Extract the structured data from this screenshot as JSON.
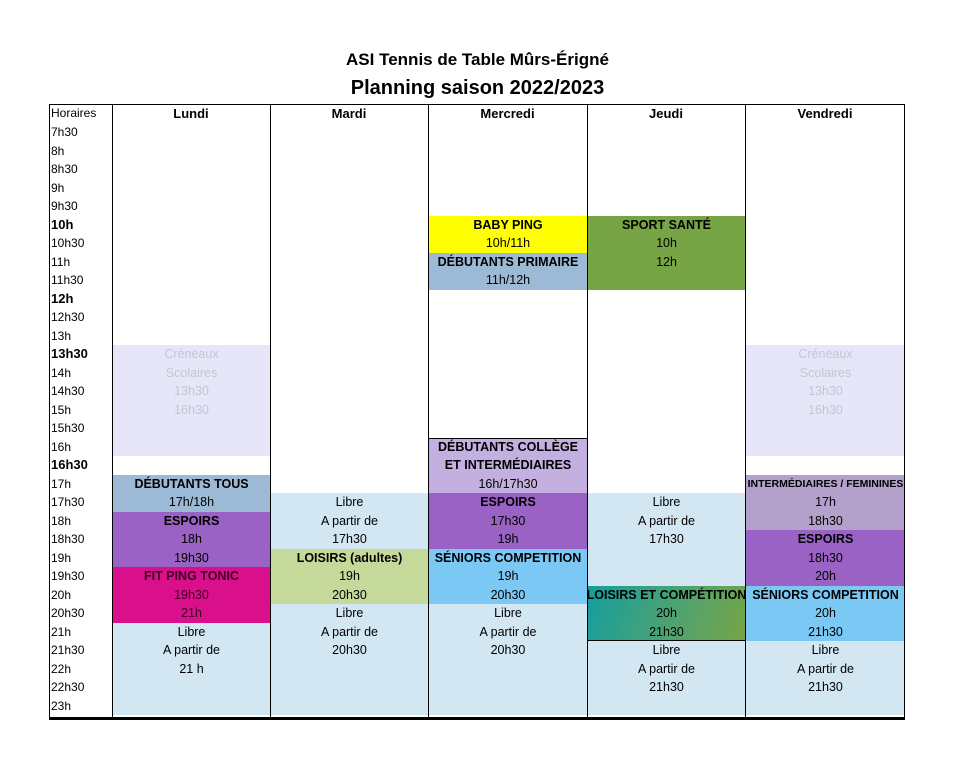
{
  "header": {
    "club": "ASI Tennis de Table Mûrs-Érigné",
    "season": "Planning saison 2022/2023"
  },
  "columns": [
    "Horaires",
    "Lundi",
    "Mardi",
    "Mercredi",
    "Jeudi",
    "Vendredi"
  ],
  "times": [
    {
      "label": "7h30",
      "bold": false
    },
    {
      "label": "8h",
      "bold": false
    },
    {
      "label": "8h30",
      "bold": false
    },
    {
      "label": "9h",
      "bold": false
    },
    {
      "label": "9h30",
      "bold": false
    },
    {
      "label": "10h",
      "bold": true
    },
    {
      "label": "10h30",
      "bold": false
    },
    {
      "label": "11h",
      "bold": false
    },
    {
      "label": "11h30",
      "bold": false
    },
    {
      "label": "12h",
      "bold": true
    },
    {
      "label": "12h30",
      "bold": false
    },
    {
      "label": "13h",
      "bold": false
    },
    {
      "label": "13h30",
      "bold": true
    },
    {
      "label": "14h",
      "bold": false
    },
    {
      "label": "14h30",
      "bold": false
    },
    {
      "label": "15h",
      "bold": false
    },
    {
      "label": "15h30",
      "bold": false
    },
    {
      "label": "16h",
      "bold": false
    },
    {
      "label": "16h30",
      "bold": true
    },
    {
      "label": "17h",
      "bold": false
    },
    {
      "label": "17h30",
      "bold": false
    },
    {
      "label": "18h",
      "bold": false
    },
    {
      "label": "18h30",
      "bold": false
    },
    {
      "label": "19h",
      "bold": false
    },
    {
      "label": "19h30",
      "bold": false
    },
    {
      "label": "20h",
      "bold": false
    },
    {
      "label": "20h30",
      "bold": false
    },
    {
      "label": "21h",
      "bold": false
    },
    {
      "label": "21h30",
      "bold": false
    },
    {
      "label": "22h",
      "bold": false
    },
    {
      "label": "22h30",
      "bold": false
    },
    {
      "label": "23h",
      "bold": false
    }
  ],
  "colors": {
    "scolaire": "#e6e6f8",
    "scolaire_text": "#c4c4d6",
    "libre": "#d3e7f3",
    "debutants": "#9cbad6",
    "espoirs": "#9a62c4",
    "fit": "#d90f8c",
    "loisirs_adultes": "#c5d99a",
    "baby": "#ffff00",
    "sport_sante": "#77a545",
    "college": "#c3afe0",
    "seniors": "#7cc8f4",
    "inter_fem": "#b3a0cb"
  },
  "activities": [
    {
      "day": 1,
      "start": 12,
      "slots": 6,
      "color_key": "scolaire",
      "muted": true,
      "lines": [
        "Créneaux",
        "Scolaires",
        "13h30",
        "16h30"
      ],
      "bold": [
        false,
        false,
        false,
        false
      ]
    },
    {
      "day": 1,
      "start": 19,
      "slots": 2,
      "color_key": "debutants",
      "lines": [
        "DÉBUTANTS TOUS",
        "17h/18h"
      ],
      "bold": [
        true,
        false
      ]
    },
    {
      "day": 1,
      "start": 21,
      "slots": 3,
      "color_key": "espoirs",
      "lines": [
        "ESPOIRS",
        "18h",
        "19h30"
      ],
      "bold": [
        true,
        false,
        false
      ]
    },
    {
      "day": 1,
      "start": 24,
      "slots": 3,
      "color_key": "fit",
      "lines": [
        "FIT PING TONIC",
        "19h30",
        "21h"
      ],
      "bold": [
        true,
        false,
        false
      ]
    },
    {
      "day": 1,
      "start": 27,
      "slots": 5,
      "color_key": "libre",
      "lines": [
        "Libre",
        "A partir de",
        "21 h"
      ],
      "bold": [
        false,
        false,
        false
      ]
    },
    {
      "day": 2,
      "start": 20,
      "slots": 3,
      "color_key": "libre",
      "lines": [
        "Libre",
        "A partir de",
        "17h30"
      ],
      "bold": [
        false,
        false,
        false
      ]
    },
    {
      "day": 2,
      "start": 23,
      "slots": 3,
      "color_key": "loisirs_adultes",
      "lines": [
        "LOISIRS (adultes)",
        "19h",
        "20h30"
      ],
      "bold": [
        true,
        false,
        false
      ]
    },
    {
      "day": 2,
      "start": 26,
      "slots": 6,
      "color_key": "libre",
      "lines": [
        "Libre",
        "A partir de",
        "20h30"
      ],
      "bold": [
        false,
        false,
        false
      ]
    },
    {
      "day": 3,
      "start": 5,
      "slots": 2,
      "color_key": "baby",
      "lines": [
        "BABY PING",
        "10h/11h"
      ],
      "bold": [
        true,
        false
      ]
    },
    {
      "day": 3,
      "start": 7,
      "slots": 2,
      "color_key": "debutants",
      "lines": [
        "DÉBUTANTS PRIMAIRE",
        "11h/12h"
      ],
      "bold": [
        true,
        false
      ]
    },
    {
      "day": 3,
      "start": 17,
      "slots": 3,
      "color_key": "college",
      "lines": [
        "DÉBUTANTS COLLÈGE",
        "ET INTERMÉDIAIRES",
        "16h/17h30"
      ],
      "bold": [
        true,
        true,
        false
      ]
    },
    {
      "day": 3,
      "start": 20,
      "slots": 3,
      "color_key": "espoirs",
      "lines": [
        "ESPOIRS",
        "17h30",
        "19h"
      ],
      "bold": [
        true,
        false,
        false
      ]
    },
    {
      "day": 3,
      "start": 23,
      "slots": 3,
      "color_key": "seniors",
      "lines": [
        "SÉNIORS COMPETITION",
        "19h",
        "20h30"
      ],
      "bold": [
        true,
        false,
        false
      ]
    },
    {
      "day": 3,
      "start": 26,
      "slots": 6,
      "color_key": "libre",
      "lines": [
        "Libre",
        "A partir de",
        "20h30"
      ],
      "bold": [
        false,
        false,
        false
      ]
    },
    {
      "day": 4,
      "start": 5,
      "slots": 4,
      "color_key": "sport_sante",
      "lines": [
        "SPORT SANTÉ",
        "10h",
        "12h"
      ],
      "bold": [
        true,
        false,
        false
      ]
    },
    {
      "day": 4,
      "start": 20,
      "slots": 5,
      "color_key": "libre",
      "lines": [
        "Libre",
        "A partir de",
        "17h30"
      ],
      "bold": [
        false,
        false,
        false
      ]
    },
    {
      "day": 4,
      "start": 25,
      "slots": 3,
      "color_key": "sport_sante",
      "gradient": true,
      "lines": [
        "LOISIRS ET COMPÉTITION",
        "20h",
        "21h30"
      ],
      "bold": [
        true,
        false,
        false
      ]
    },
    {
      "day": 4,
      "start": 28,
      "slots": 4,
      "color_key": "libre",
      "lines": [
        "Libre",
        "A partir de",
        "21h30"
      ],
      "bold": [
        false,
        false,
        false
      ]
    },
    {
      "day": 5,
      "start": 12,
      "slots": 6,
      "color_key": "scolaire",
      "muted": true,
      "lines": [
        "Créneaux",
        "Scolaires",
        "13h30",
        "16h30"
      ],
      "bold": [
        false,
        false,
        false,
        false
      ]
    },
    {
      "day": 5,
      "start": 19,
      "slots": 3,
      "color_key": "inter_fem",
      "small": true,
      "lines": [
        "INTERMÉDIAIRES / FEMININES",
        "17h",
        "18h30"
      ],
      "bold": [
        true,
        false,
        false
      ]
    },
    {
      "day": 5,
      "start": 22,
      "slots": 3,
      "color_key": "espoirs",
      "lines": [
        "ESPOIRS",
        "18h30",
        "20h"
      ],
      "bold": [
        true,
        false,
        false
      ]
    },
    {
      "day": 5,
      "start": 25,
      "slots": 3,
      "color_key": "seniors",
      "lines": [
        "SÉNIORS COMPETITION",
        "20h",
        "21h30"
      ],
      "bold": [
        true,
        false,
        false
      ]
    },
    {
      "day": 5,
      "start": 28,
      "slots": 4,
      "color_key": "libre",
      "lines": [
        "Libre",
        "A partir de",
        "21h30"
      ],
      "bold": [
        false,
        false,
        false
      ]
    }
  ]
}
